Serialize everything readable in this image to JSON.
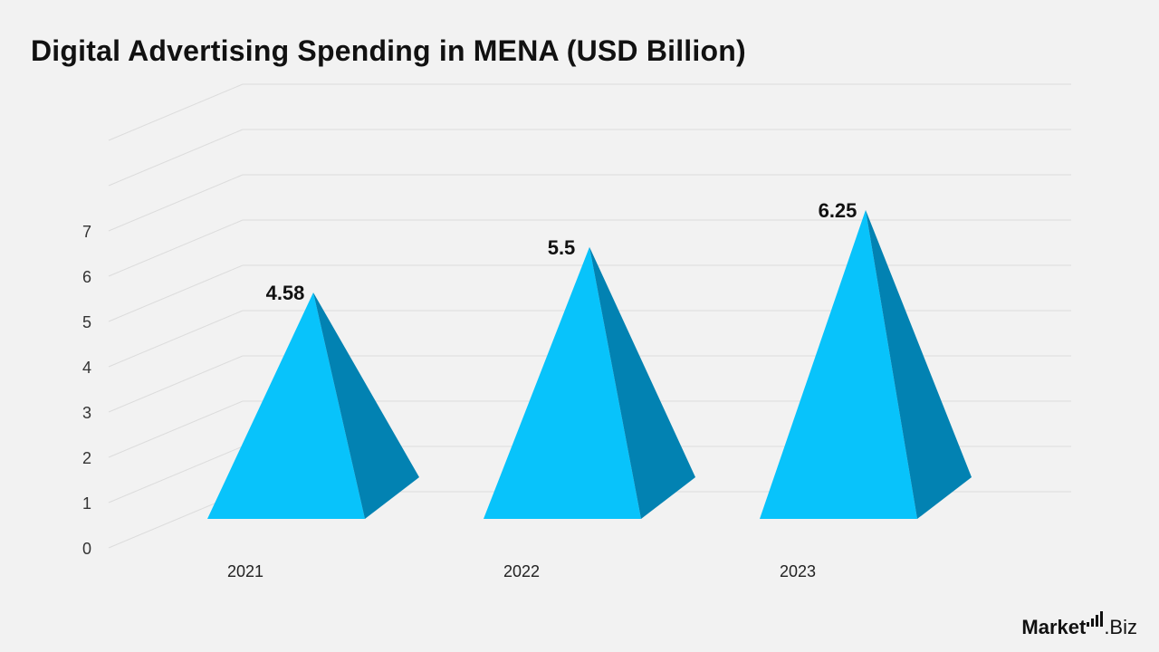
{
  "title": "Digital Advertising Spending in MENA (USD Billion)",
  "brand": {
    "name_part1": "Market",
    "name_part2": ".Biz"
  },
  "colors": {
    "front": "#08c3fb",
    "side": "#0282b2",
    "grid": "#dcdcdc",
    "background": "#f2f2f2"
  },
  "chart_data": {
    "type": "bar",
    "style": "3d-pyramid",
    "title": "Digital Advertising Spending in MENA (USD Billion)",
    "categories": [
      "2021",
      "2022",
      "2023"
    ],
    "values": [
      4.58,
      5.5,
      6.25
    ],
    "value_labels": [
      "4.58",
      "5.5",
      "6.25"
    ],
    "y_ticks": [
      "0",
      "1",
      "2",
      "3",
      "4",
      "5",
      "6",
      "7"
    ],
    "ylim": [
      0,
      7
    ],
    "grid": true,
    "legend": "none"
  }
}
